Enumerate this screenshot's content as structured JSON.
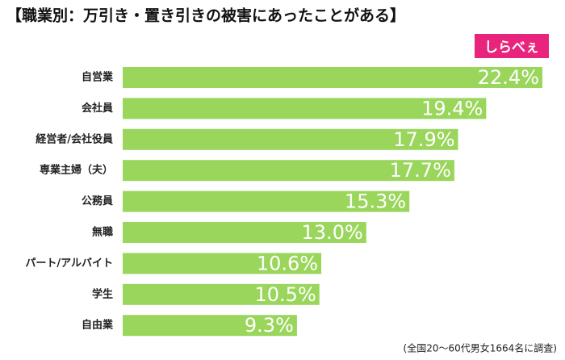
{
  "chart_data": {
    "type": "bar",
    "orientation": "horizontal",
    "title": "【職業別：万引き・置き引きの被害にあったことがある】",
    "categories": [
      "自営業",
      "会社員",
      "経営者/会社役員",
      "専業主婦（夫）",
      "公務員",
      "無職",
      "パート/アルバイト",
      "学生",
      "自由業"
    ],
    "values": [
      22.4,
      19.4,
      17.9,
      17.7,
      15.3,
      13.0,
      10.6,
      10.5,
      9.3
    ],
    "value_labels": [
      "22.4%",
      "19.4%",
      "17.9%",
      "17.7%",
      "15.3%",
      "13.0%",
      "10.6%",
      "10.5%",
      "9.3%"
    ],
    "color": "#9ad65c",
    "note": "(全国20～60代男女1664名に調査)"
  },
  "logo": {
    "text": "しらべぇ"
  }
}
